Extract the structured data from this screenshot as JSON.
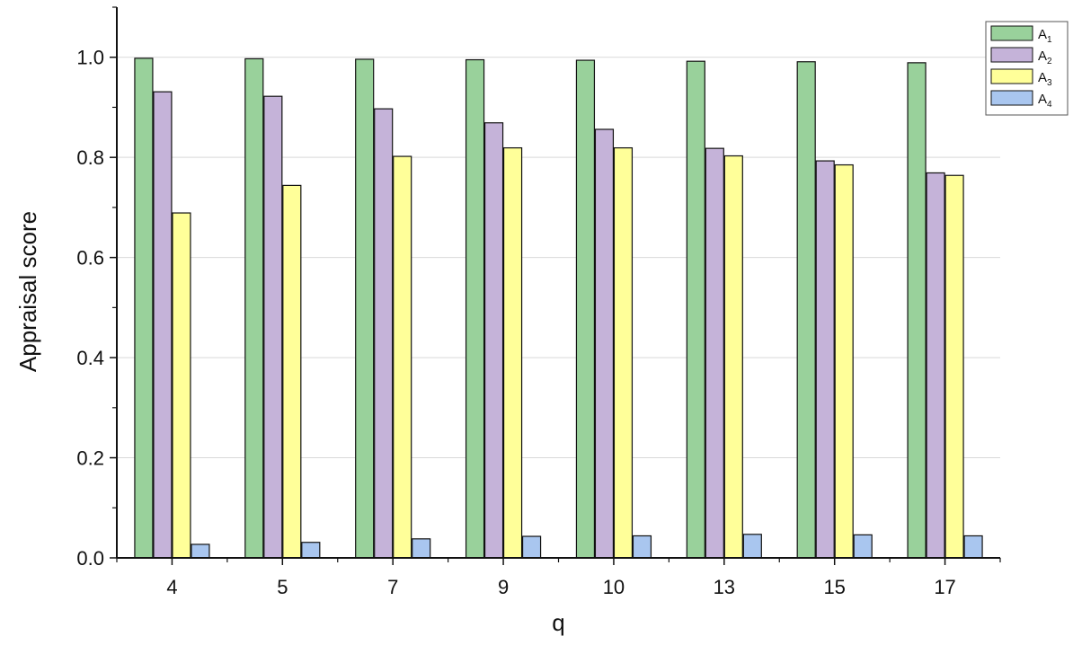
{
  "chart_data": {
    "type": "bar",
    "title": "",
    "xlabel": "q",
    "ylabel": "Appraisal score",
    "categories": [
      "4",
      "5",
      "7",
      "9",
      "10",
      "13",
      "15",
      "17"
    ],
    "ylim": [
      0,
      1.1
    ],
    "yticks": [
      "0.0",
      "0.2",
      "0.4",
      "0.6",
      "0.8",
      "1.0"
    ],
    "grid": "horizontal",
    "legend_position": "top-right",
    "series": [
      {
        "name": "A",
        "subscript": "1",
        "color": "#99d19b",
        "values": [
          0.998,
          0.997,
          0.996,
          0.995,
          0.994,
          0.992,
          0.991,
          0.989
        ]
      },
      {
        "name": "A",
        "subscript": "2",
        "color": "#c5b3d9",
        "values": [
          0.931,
          0.922,
          0.897,
          0.869,
          0.856,
          0.818,
          0.793,
          0.769
        ]
      },
      {
        "name": "A",
        "subscript": "3",
        "color": "#ffff99",
        "values": [
          0.689,
          0.744,
          0.802,
          0.819,
          0.819,
          0.803,
          0.785,
          0.764
        ]
      },
      {
        "name": "A",
        "subscript": "4",
        "color": "#a9c6ef",
        "values": [
          0.027,
          0.031,
          0.038,
          0.043,
          0.044,
          0.047,
          0.046,
          0.044
        ]
      }
    ]
  }
}
